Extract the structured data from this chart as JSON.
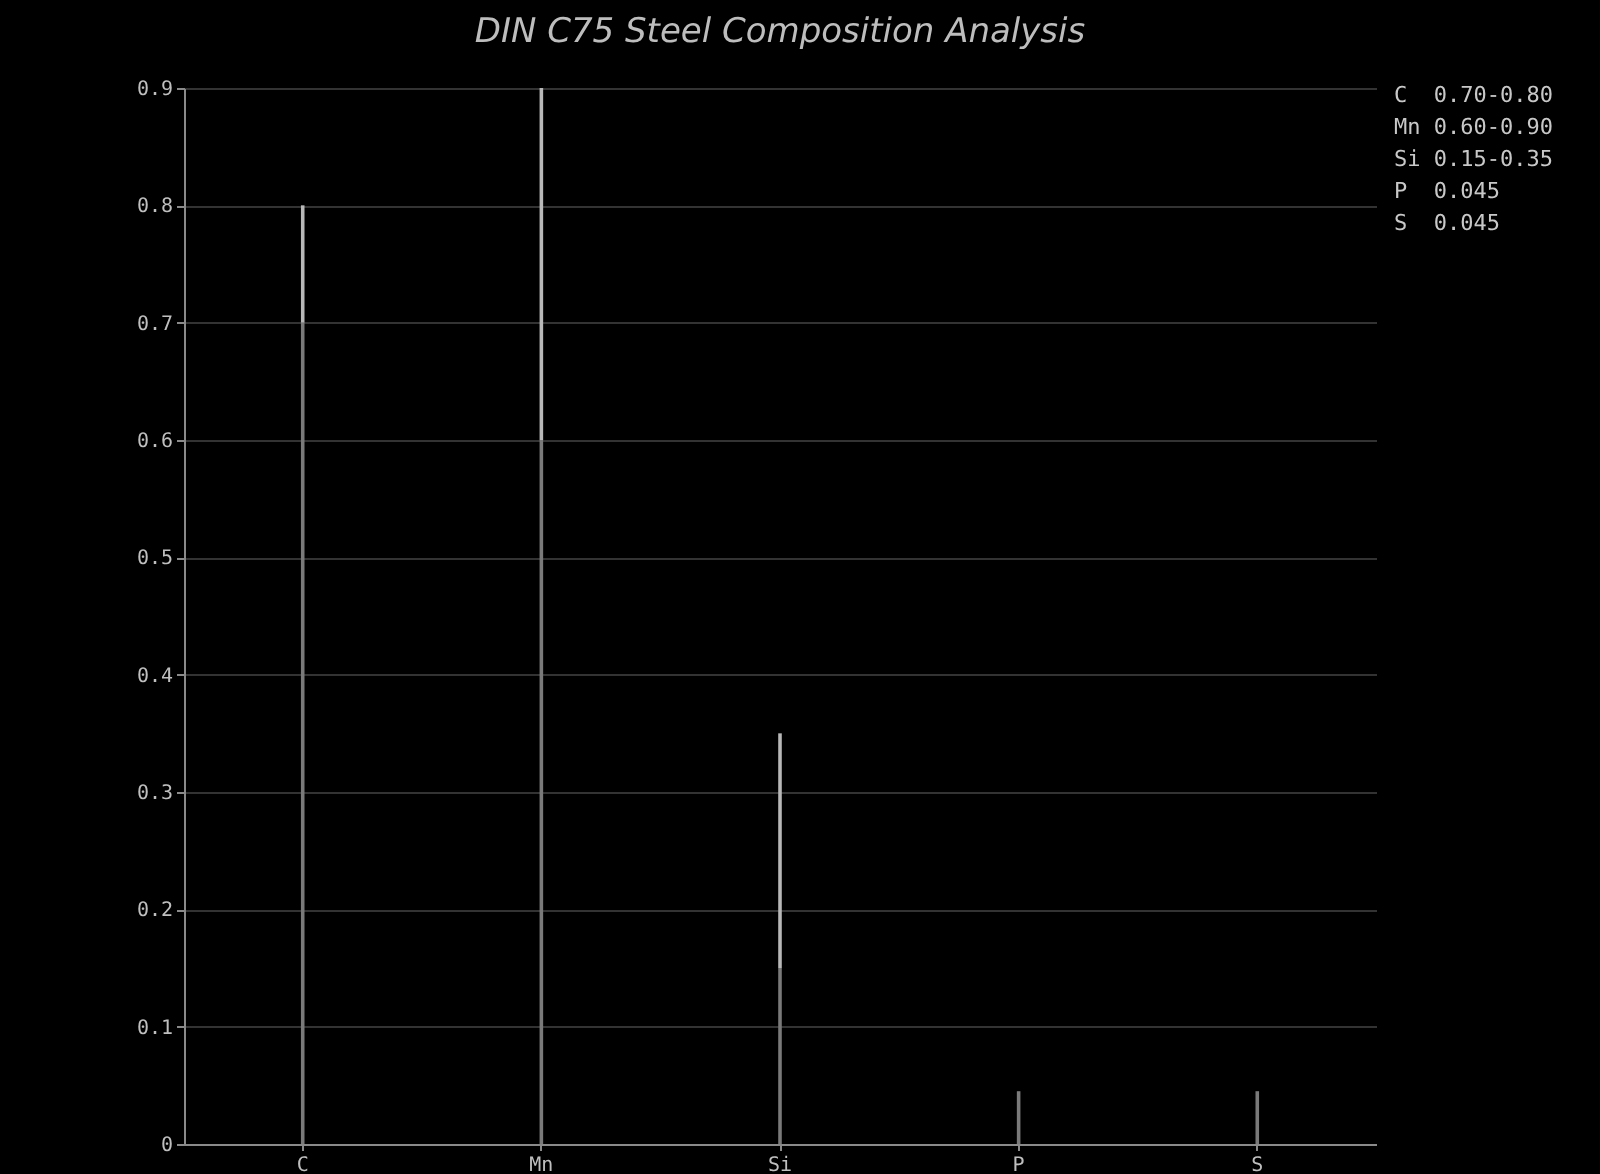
{
  "chart_data": {
    "type": "bar",
    "title": "DIN C75 Steel Composition Analysis",
    "categories": [
      "C",
      "Mn",
      "Si",
      "P",
      "S"
    ],
    "stacked": true,
    "series": [
      {
        "color": "#7a7a7a",
        "values": [
          0.7,
          0.6,
          0.15,
          0.045,
          0.045
        ]
      },
      {
        "color": "#b8b8b8",
        "values": [
          0.1,
          0.3,
          0.2,
          null,
          null
        ]
      }
    ],
    "ylim": [
      0,
      0.9
    ],
    "yticks": [
      0,
      0.1,
      0.2,
      0.3,
      0.4,
      0.5,
      0.6,
      0.7,
      0.8,
      0.9
    ],
    "grid": "y",
    "legend": false,
    "annotations": [
      "C  0.70-0.80",
      "Mn 0.60-0.90",
      "Si 0.15-0.35",
      "P  0.045",
      "S  0.045"
    ]
  }
}
